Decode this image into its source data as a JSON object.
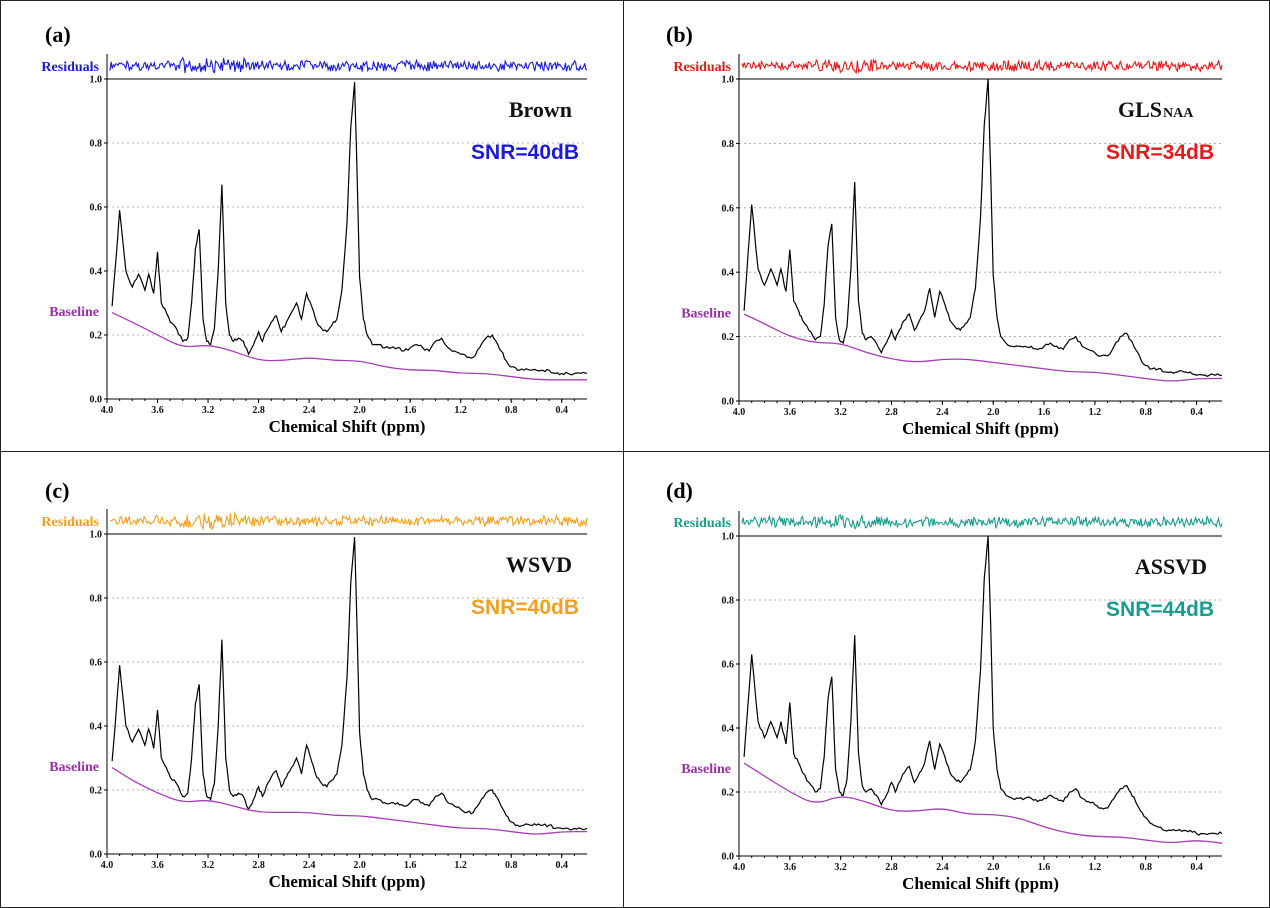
{
  "chart_data": [
    {
      "type": "line",
      "panel_label": "(a)",
      "method": "Brown",
      "method_subscript": "",
      "snr_label": "SNR=40dB",
      "accent": "#1a1adb",
      "residuals_label": "Residuals",
      "baseline_label": "Baseline",
      "xlabel": "Chemical Shift (ppm)",
      "xlim": [
        4.0,
        0.2
      ],
      "ylim": [
        0.0,
        1.0
      ],
      "xticks": [
        "4.0",
        "3.6",
        "3.2",
        "2.8",
        "2.4",
        "2.0",
        "1.6",
        "1.2",
        "0.8",
        "0.4"
      ],
      "yticks": [
        "0.0",
        "0.2",
        "0.4",
        "0.6",
        "0.8",
        "1.0"
      ],
      "series": [
        {
          "x": [
            3.96,
            3.93,
            3.9,
            3.85,
            3.8,
            3.75,
            3.7,
            3.67,
            3.63,
            3.6,
            3.57,
            3.53,
            3.5,
            3.45,
            3.4,
            3.36,
            3.33,
            3.3,
            3.27,
            3.24,
            3.21,
            3.18,
            3.15,
            3.12,
            3.09,
            3.06,
            3.03,
            3.0,
            2.96,
            2.92,
            2.88,
            2.84,
            2.8,
            2.77,
            2.74,
            2.7,
            2.66,
            2.62,
            2.58,
            2.54,
            2.5,
            2.46,
            2.42,
            2.38,
            2.34,
            2.3,
            2.26,
            2.22,
            2.18,
            2.14,
            2.1,
            2.07,
            2.04,
            2.02,
            2.0,
            1.97,
            1.94,
            1.9,
            1.85,
            1.8,
            1.75,
            1.7,
            1.65,
            1.6,
            1.55,
            1.5,
            1.45,
            1.4,
            1.35,
            1.3,
            1.25,
            1.2,
            1.15,
            1.1,
            1.05,
            1.0,
            0.95,
            0.92,
            0.88,
            0.84,
            0.8,
            0.75,
            0.7,
            0.65,
            0.6,
            0.55,
            0.5,
            0.45,
            0.4,
            0.35,
            0.3,
            0.25,
            0.2
          ],
          "values": [
            0.29,
            0.43,
            0.59,
            0.4,
            0.35,
            0.39,
            0.34,
            0.39,
            0.33,
            0.46,
            0.3,
            0.27,
            0.24,
            0.22,
            0.18,
            0.19,
            0.3,
            0.47,
            0.53,
            0.25,
            0.18,
            0.17,
            0.22,
            0.4,
            0.67,
            0.3,
            0.2,
            0.18,
            0.19,
            0.18,
            0.14,
            0.17,
            0.21,
            0.18,
            0.21,
            0.24,
            0.26,
            0.21,
            0.24,
            0.27,
            0.3,
            0.25,
            0.33,
            0.29,
            0.24,
            0.22,
            0.21,
            0.23,
            0.25,
            0.34,
            0.55,
            0.85,
            0.99,
            0.7,
            0.38,
            0.25,
            0.2,
            0.17,
            0.17,
            0.16,
            0.16,
            0.16,
            0.15,
            0.16,
            0.17,
            0.16,
            0.15,
            0.18,
            0.19,
            0.16,
            0.15,
            0.14,
            0.13,
            0.13,
            0.16,
            0.19,
            0.2,
            0.18,
            0.15,
            0.12,
            0.1,
            0.09,
            0.09,
            0.09,
            0.09,
            0.09,
            0.09,
            0.08,
            0.08,
            0.08,
            0.08,
            0.08,
            0.08
          ]
        },
        {
          "x": [
            3.96,
            3.8,
            3.6,
            3.4,
            3.2,
            3.0,
            2.8,
            2.6,
            2.4,
            2.2,
            2.0,
            1.8,
            1.6,
            1.4,
            1.2,
            1.0,
            0.8,
            0.6,
            0.4,
            0.2
          ],
          "values": [
            0.27,
            0.24,
            0.2,
            0.16,
            0.17,
            0.15,
            0.12,
            0.12,
            0.13,
            0.12,
            0.12,
            0.1,
            0.09,
            0.09,
            0.08,
            0.08,
            0.07,
            0.06,
            0.06,
            0.06
          ]
        }
      ]
    },
    {
      "type": "line",
      "panel_label": "(b)",
      "method": "GLS",
      "method_subscript": "NAA",
      "snr_label": "SNR=34dB",
      "accent": "#e41a1a",
      "residuals_label": "Residuals",
      "baseline_label": "Baseline",
      "xlabel": "Chemical Shift (ppm)",
      "xlim": [
        4.0,
        0.2
      ],
      "ylim": [
        0.0,
        1.0
      ],
      "xticks": [
        "4.0",
        "3.6",
        "3.2",
        "2.8",
        "2.4",
        "2.0",
        "1.6",
        "1.2",
        "0.8",
        "0.4"
      ],
      "yticks": [
        "0.0",
        "0.2",
        "0.4",
        "0.6",
        "0.8",
        "1.0"
      ],
      "series": [
        {
          "x": [
            3.96,
            3.93,
            3.9,
            3.85,
            3.8,
            3.75,
            3.7,
            3.67,
            3.63,
            3.6,
            3.57,
            3.53,
            3.5,
            3.45,
            3.4,
            3.36,
            3.33,
            3.3,
            3.27,
            3.24,
            3.21,
            3.18,
            3.15,
            3.12,
            3.09,
            3.06,
            3.03,
            3.0,
            2.96,
            2.92,
            2.88,
            2.84,
            2.8,
            2.77,
            2.74,
            2.7,
            2.66,
            2.62,
            2.58,
            2.54,
            2.5,
            2.46,
            2.42,
            2.38,
            2.34,
            2.3,
            2.26,
            2.22,
            2.18,
            2.14,
            2.1,
            2.07,
            2.04,
            2.02,
            2.0,
            1.97,
            1.94,
            1.9,
            1.85,
            1.8,
            1.75,
            1.7,
            1.65,
            1.6,
            1.55,
            1.5,
            1.45,
            1.4,
            1.35,
            1.3,
            1.25,
            1.2,
            1.15,
            1.1,
            1.05,
            1.0,
            0.95,
            0.92,
            0.88,
            0.84,
            0.8,
            0.75,
            0.7,
            0.65,
            0.6,
            0.55,
            0.5,
            0.45,
            0.4,
            0.35,
            0.3,
            0.25,
            0.2
          ],
          "values": [
            0.28,
            0.45,
            0.61,
            0.41,
            0.36,
            0.41,
            0.36,
            0.41,
            0.34,
            0.47,
            0.31,
            0.28,
            0.25,
            0.22,
            0.19,
            0.2,
            0.3,
            0.48,
            0.55,
            0.26,
            0.19,
            0.18,
            0.23,
            0.41,
            0.68,
            0.31,
            0.21,
            0.19,
            0.2,
            0.18,
            0.15,
            0.18,
            0.22,
            0.19,
            0.22,
            0.25,
            0.27,
            0.22,
            0.25,
            0.28,
            0.35,
            0.26,
            0.34,
            0.3,
            0.25,
            0.23,
            0.22,
            0.24,
            0.26,
            0.35,
            0.57,
            0.86,
            1.0,
            0.71,
            0.39,
            0.26,
            0.2,
            0.18,
            0.17,
            0.17,
            0.17,
            0.17,
            0.16,
            0.17,
            0.18,
            0.17,
            0.16,
            0.19,
            0.2,
            0.17,
            0.16,
            0.15,
            0.14,
            0.14,
            0.17,
            0.2,
            0.21,
            0.19,
            0.16,
            0.13,
            0.11,
            0.1,
            0.1,
            0.09,
            0.09,
            0.09,
            0.09,
            0.09,
            0.08,
            0.08,
            0.08,
            0.08,
            0.08
          ]
        },
        {
          "x": [
            3.96,
            3.8,
            3.6,
            3.4,
            3.2,
            3.0,
            2.8,
            2.6,
            2.4,
            2.2,
            2.0,
            1.8,
            1.6,
            1.4,
            1.2,
            1.0,
            0.8,
            0.6,
            0.4,
            0.2
          ],
          "values": [
            0.27,
            0.24,
            0.2,
            0.18,
            0.18,
            0.15,
            0.13,
            0.12,
            0.13,
            0.13,
            0.12,
            0.11,
            0.1,
            0.09,
            0.09,
            0.08,
            0.07,
            0.06,
            0.07,
            0.07
          ]
        }
      ]
    },
    {
      "type": "line",
      "panel_label": "(c)",
      "method": "WSVD",
      "method_subscript": "",
      "snr_label": "SNR=40dB",
      "accent": "#f0a020",
      "residuals_label": "Residuals",
      "baseline_label": "Baseline",
      "xlabel": "Chemical Shift (ppm)",
      "xlim": [
        4.0,
        0.2
      ],
      "ylim": [
        0.0,
        1.0
      ],
      "xticks": [
        "4.0",
        "3.6",
        "3.2",
        "2.8",
        "2.4",
        "2.0",
        "1.6",
        "1.2",
        "0.8",
        "0.4"
      ],
      "yticks": [
        "0.0",
        "0.2",
        "0.4",
        "0.6",
        "0.8",
        "1.0"
      ],
      "series": [
        {
          "x": [
            3.96,
            3.93,
            3.9,
            3.85,
            3.8,
            3.75,
            3.7,
            3.67,
            3.63,
            3.6,
            3.57,
            3.53,
            3.5,
            3.45,
            3.4,
            3.36,
            3.33,
            3.3,
            3.27,
            3.24,
            3.21,
            3.18,
            3.15,
            3.12,
            3.09,
            3.06,
            3.03,
            3.0,
            2.96,
            2.92,
            2.88,
            2.84,
            2.8,
            2.77,
            2.74,
            2.7,
            2.66,
            2.62,
            2.58,
            2.54,
            2.5,
            2.46,
            2.42,
            2.38,
            2.34,
            2.3,
            2.26,
            2.22,
            2.18,
            2.14,
            2.1,
            2.07,
            2.04,
            2.02,
            2.0,
            1.97,
            1.94,
            1.9,
            1.85,
            1.8,
            1.75,
            1.7,
            1.65,
            1.6,
            1.55,
            1.5,
            1.45,
            1.4,
            1.35,
            1.3,
            1.25,
            1.2,
            1.15,
            1.1,
            1.05,
            1.0,
            0.95,
            0.92,
            0.88,
            0.84,
            0.8,
            0.75,
            0.7,
            0.65,
            0.6,
            0.55,
            0.5,
            0.45,
            0.4,
            0.35,
            0.3,
            0.25,
            0.2
          ],
          "values": [
            0.29,
            0.43,
            0.59,
            0.4,
            0.35,
            0.39,
            0.34,
            0.39,
            0.33,
            0.45,
            0.3,
            0.27,
            0.24,
            0.22,
            0.18,
            0.19,
            0.3,
            0.47,
            0.53,
            0.25,
            0.18,
            0.17,
            0.22,
            0.4,
            0.67,
            0.3,
            0.2,
            0.18,
            0.19,
            0.18,
            0.14,
            0.17,
            0.21,
            0.18,
            0.21,
            0.24,
            0.26,
            0.21,
            0.24,
            0.27,
            0.3,
            0.25,
            0.34,
            0.29,
            0.24,
            0.22,
            0.21,
            0.23,
            0.25,
            0.34,
            0.55,
            0.85,
            0.99,
            0.7,
            0.38,
            0.25,
            0.2,
            0.17,
            0.17,
            0.16,
            0.16,
            0.16,
            0.15,
            0.16,
            0.17,
            0.16,
            0.15,
            0.18,
            0.19,
            0.16,
            0.15,
            0.14,
            0.13,
            0.13,
            0.16,
            0.19,
            0.2,
            0.18,
            0.15,
            0.12,
            0.1,
            0.09,
            0.09,
            0.09,
            0.09,
            0.09,
            0.09,
            0.08,
            0.08,
            0.08,
            0.08,
            0.08,
            0.08
          ]
        },
        {
          "x": [
            3.96,
            3.8,
            3.6,
            3.4,
            3.2,
            3.0,
            2.8,
            2.6,
            2.4,
            2.2,
            2.0,
            1.8,
            1.6,
            1.4,
            1.2,
            1.0,
            0.8,
            0.6,
            0.4,
            0.2
          ],
          "values": [
            0.27,
            0.23,
            0.19,
            0.16,
            0.17,
            0.15,
            0.13,
            0.13,
            0.13,
            0.12,
            0.12,
            0.11,
            0.1,
            0.09,
            0.08,
            0.08,
            0.07,
            0.06,
            0.07,
            0.07
          ]
        }
      ]
    },
    {
      "type": "line",
      "panel_label": "(d)",
      "method": "ASSVD",
      "method_subscript": "",
      "snr_label": "SNR=44dB",
      "accent": "#1a9c8c",
      "residuals_label": "Residuals",
      "baseline_label": "Baseline",
      "xlabel": "Chemical Shift (ppm)",
      "xlim": [
        4.0,
        0.2
      ],
      "ylim": [
        0.0,
        1.0
      ],
      "xticks": [
        "4.0",
        "3.6",
        "3.2",
        "2.8",
        "2.4",
        "2.0",
        "1.6",
        "1.2",
        "0.8",
        "0.4"
      ],
      "yticks": [
        "0.0",
        "0.2",
        "0.4",
        "0.6",
        "0.8",
        "1.0"
      ],
      "series": [
        {
          "x": [
            3.96,
            3.93,
            3.9,
            3.85,
            3.8,
            3.75,
            3.7,
            3.67,
            3.63,
            3.6,
            3.57,
            3.53,
            3.5,
            3.45,
            3.4,
            3.36,
            3.33,
            3.3,
            3.27,
            3.24,
            3.21,
            3.18,
            3.15,
            3.12,
            3.09,
            3.06,
            3.03,
            3.0,
            2.96,
            2.92,
            2.88,
            2.84,
            2.8,
            2.77,
            2.74,
            2.7,
            2.66,
            2.62,
            2.58,
            2.54,
            2.5,
            2.46,
            2.42,
            2.38,
            2.34,
            2.3,
            2.26,
            2.22,
            2.18,
            2.14,
            2.1,
            2.07,
            2.04,
            2.02,
            2.0,
            1.97,
            1.94,
            1.9,
            1.85,
            1.8,
            1.75,
            1.7,
            1.65,
            1.6,
            1.55,
            1.5,
            1.45,
            1.4,
            1.35,
            1.3,
            1.25,
            1.2,
            1.15,
            1.1,
            1.05,
            1.0,
            0.95,
            0.92,
            0.88,
            0.84,
            0.8,
            0.75,
            0.7,
            0.65,
            0.6,
            0.55,
            0.5,
            0.45,
            0.4,
            0.35,
            0.3,
            0.25,
            0.2
          ],
          "values": [
            0.31,
            0.47,
            0.63,
            0.42,
            0.37,
            0.42,
            0.37,
            0.42,
            0.35,
            0.48,
            0.32,
            0.29,
            0.26,
            0.23,
            0.2,
            0.21,
            0.31,
            0.49,
            0.56,
            0.27,
            0.2,
            0.19,
            0.24,
            0.42,
            0.69,
            0.32,
            0.22,
            0.2,
            0.21,
            0.19,
            0.16,
            0.19,
            0.23,
            0.2,
            0.23,
            0.26,
            0.28,
            0.23,
            0.26,
            0.29,
            0.36,
            0.27,
            0.35,
            0.31,
            0.26,
            0.24,
            0.23,
            0.25,
            0.27,
            0.36,
            0.58,
            0.87,
            1.0,
            0.72,
            0.4,
            0.27,
            0.21,
            0.19,
            0.18,
            0.18,
            0.18,
            0.18,
            0.17,
            0.18,
            0.19,
            0.18,
            0.17,
            0.2,
            0.21,
            0.18,
            0.17,
            0.16,
            0.15,
            0.15,
            0.18,
            0.21,
            0.22,
            0.2,
            0.17,
            0.14,
            0.12,
            0.1,
            0.09,
            0.08,
            0.08,
            0.08,
            0.08,
            0.08,
            0.07,
            0.07,
            0.07,
            0.07,
            0.07
          ]
        },
        {
          "x": [
            3.96,
            3.8,
            3.6,
            3.4,
            3.2,
            3.0,
            2.8,
            2.6,
            2.4,
            2.2,
            2.0,
            1.8,
            1.6,
            1.4,
            1.2,
            1.0,
            0.8,
            0.6,
            0.4,
            0.2
          ],
          "values": [
            0.29,
            0.25,
            0.2,
            0.16,
            0.19,
            0.17,
            0.14,
            0.14,
            0.15,
            0.13,
            0.13,
            0.12,
            0.09,
            0.07,
            0.06,
            0.06,
            0.05,
            0.04,
            0.05,
            0.04
          ]
        }
      ]
    }
  ]
}
